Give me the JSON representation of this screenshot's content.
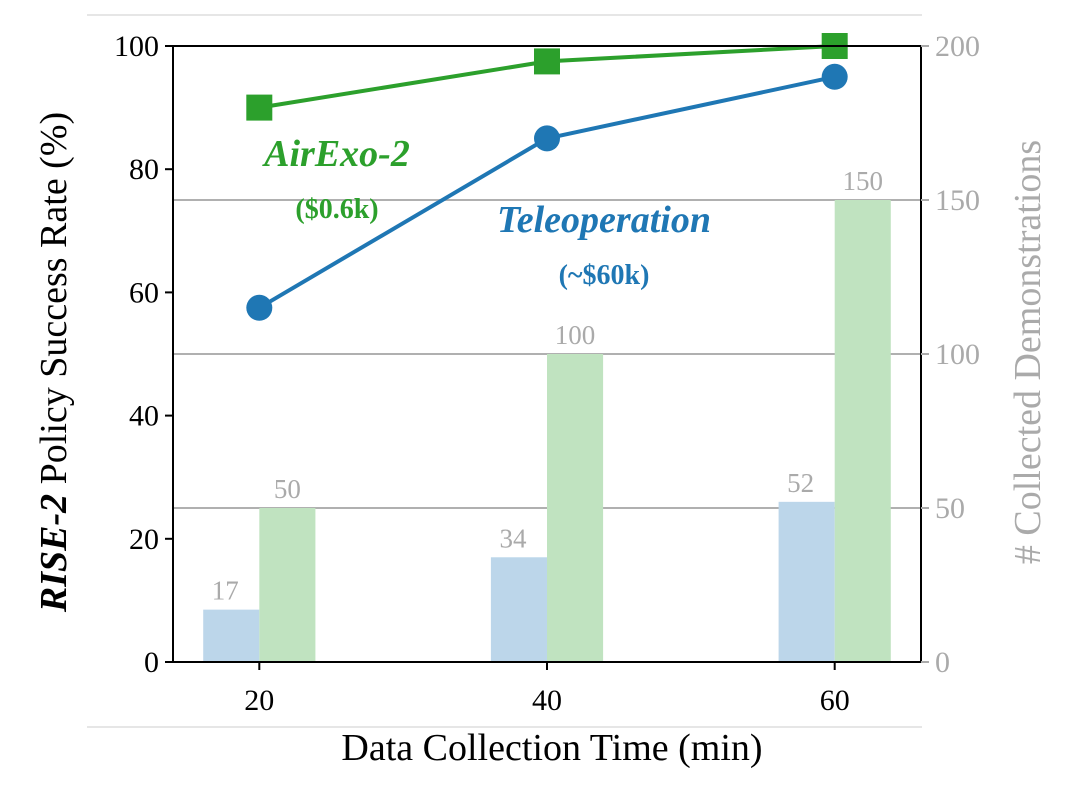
{
  "chart_data": {
    "type": "bar",
    "xlabel": "Data Collection Time (min)",
    "ylabel_bold": "RISE-2",
    "ylabel_rest": " Policy Success Rate (%)",
    "y2label": "# Collected Demonstrations",
    "x": [
      20,
      40,
      60
    ],
    "xticks": [
      "20",
      "40",
      "60"
    ],
    "xlim": [
      14,
      66
    ],
    "ylim": [
      0,
      100
    ],
    "yticks": [
      "0",
      "20",
      "40",
      "60",
      "80",
      "100"
    ],
    "y2lim": [
      0,
      200
    ],
    "y2ticks": [
      "0",
      "50",
      "100",
      "150",
      "200"
    ],
    "y2_grid": true,
    "y2_grid_lines": [
      50,
      100,
      150
    ],
    "lines": [
      {
        "name": "AirExo-2",
        "cost": "($0.6k)",
        "marker": "square",
        "color": "#2ca02c",
        "values": [
          90,
          97.5,
          100
        ]
      },
      {
        "name": "Teleoperation",
        "cost": "(~$60k)",
        "marker": "circle",
        "color": "#1f77b4",
        "values": [
          57.5,
          85,
          95
        ]
      }
    ],
    "bars": [
      {
        "group": "Teleoperation",
        "color": "#bcd6ea",
        "values": [
          17,
          34,
          52
        ],
        "labels": [
          "17",
          "34",
          "52"
        ]
      },
      {
        "group": "AirExo-2",
        "color": "#c0e3c0",
        "values": [
          50,
          100,
          150
        ],
        "labels": [
          "50",
          "100",
          "150"
        ]
      }
    ],
    "secondary_color": "#aaaaaa"
  }
}
